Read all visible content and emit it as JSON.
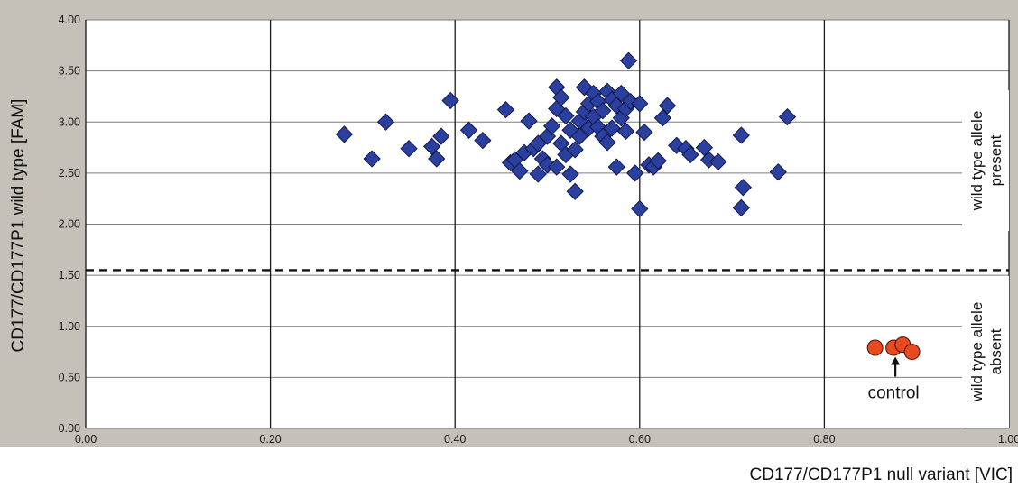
{
  "chart_data": {
    "type": "scatter",
    "xlabel": "CD177/CD177P1 null variant [VIC]",
    "ylabel": "CD177/CD177P1 wild type [FAM]",
    "xlim": [
      0,
      1
    ],
    "ylim": [
      0,
      4
    ],
    "x_ticks": [
      "0.00",
      "0.20",
      "0.40",
      "0.60",
      "0.80",
      "1.00"
    ],
    "y_ticks": [
      "0.00",
      "0.50",
      "1.00",
      "1.50",
      "2.00",
      "2.50",
      "3.00",
      "3.50",
      "4.00"
    ],
    "grid": true,
    "threshold": {
      "y": 1.55,
      "style": "dashed"
    },
    "bands": [
      {
        "label": "wild type allele present"
      },
      {
        "label": "wild type allele absent"
      }
    ],
    "annotations": [
      {
        "text": "control",
        "x": 0.875,
        "y": 0.79
      }
    ],
    "colors": {
      "present": "#2b3f9e",
      "absent": "#e8491e",
      "frame": "#c5c1b8"
    },
    "series": [
      {
        "marker": "diamond",
        "points": [
          [
            0.28,
            2.88
          ],
          [
            0.31,
            2.64
          ],
          [
            0.325,
            3.0
          ],
          [
            0.35,
            2.74
          ],
          [
            0.375,
            2.76
          ],
          [
            0.385,
            2.86
          ],
          [
            0.38,
            2.64
          ],
          [
            0.395,
            3.21
          ],
          [
            0.415,
            2.92
          ],
          [
            0.43,
            2.82
          ],
          [
            0.455,
            3.12
          ],
          [
            0.46,
            2.6
          ],
          [
            0.465,
            2.63
          ],
          [
            0.47,
            2.52
          ],
          [
            0.48,
            3.01
          ],
          [
            0.475,
            2.7
          ],
          [
            0.485,
            2.74
          ],
          [
            0.49,
            2.49
          ],
          [
            0.49,
            2.79
          ],
          [
            0.495,
            2.64
          ],
          [
            0.5,
            2.58
          ],
          [
            0.5,
            2.86
          ],
          [
            0.505,
            2.96
          ],
          [
            0.51,
            3.13
          ],
          [
            0.51,
            2.56
          ],
          [
            0.51,
            3.34
          ],
          [
            0.515,
            3.24
          ],
          [
            0.515,
            2.79
          ],
          [
            0.52,
            2.68
          ],
          [
            0.52,
            3.06
          ],
          [
            0.525,
            2.49
          ],
          [
            0.525,
            2.92
          ],
          [
            0.53,
            2.32
          ],
          [
            0.53,
            2.73
          ],
          [
            0.535,
            3.01
          ],
          [
            0.535,
            2.86
          ],
          [
            0.54,
            3.34
          ],
          [
            0.54,
            3.1
          ],
          [
            0.545,
            3.18
          ],
          [
            0.545,
            2.94
          ],
          [
            0.55,
            3.28
          ],
          [
            0.55,
            3.05
          ],
          [
            0.555,
            3.2
          ],
          [
            0.555,
            2.95
          ],
          [
            0.56,
            2.86
          ],
          [
            0.56,
            3.11
          ],
          [
            0.565,
            3.3
          ],
          [
            0.565,
            2.8
          ],
          [
            0.57,
            3.22
          ],
          [
            0.57,
            2.94
          ],
          [
            0.575,
            3.16
          ],
          [
            0.575,
            2.56
          ],
          [
            0.58,
            3.28
          ],
          [
            0.58,
            3.04
          ],
          [
            0.585,
            2.91
          ],
          [
            0.585,
            3.13
          ],
          [
            0.588,
            3.6
          ],
          [
            0.59,
            3.2
          ],
          [
            0.595,
            2.5
          ],
          [
            0.6,
            3.18
          ],
          [
            0.6,
            2.15
          ],
          [
            0.605,
            2.9
          ],
          [
            0.61,
            2.58
          ],
          [
            0.615,
            2.56
          ],
          [
            0.62,
            2.62
          ],
          [
            0.625,
            3.04
          ],
          [
            0.63,
            3.16
          ],
          [
            0.64,
            2.77
          ],
          [
            0.65,
            2.74
          ],
          [
            0.655,
            2.68
          ],
          [
            0.67,
            2.75
          ],
          [
            0.675,
            2.63
          ],
          [
            0.685,
            2.61
          ],
          [
            0.71,
            2.87
          ],
          [
            0.712,
            2.36
          ],
          [
            0.71,
            2.16
          ],
          [
            0.75,
            2.51
          ],
          [
            0.76,
            3.05
          ]
        ]
      },
      {
        "marker": "circle",
        "points": [
          [
            0.855,
            0.79
          ],
          [
            0.875,
            0.79
          ],
          [
            0.885,
            0.82
          ],
          [
            0.895,
            0.75
          ]
        ]
      }
    ]
  }
}
